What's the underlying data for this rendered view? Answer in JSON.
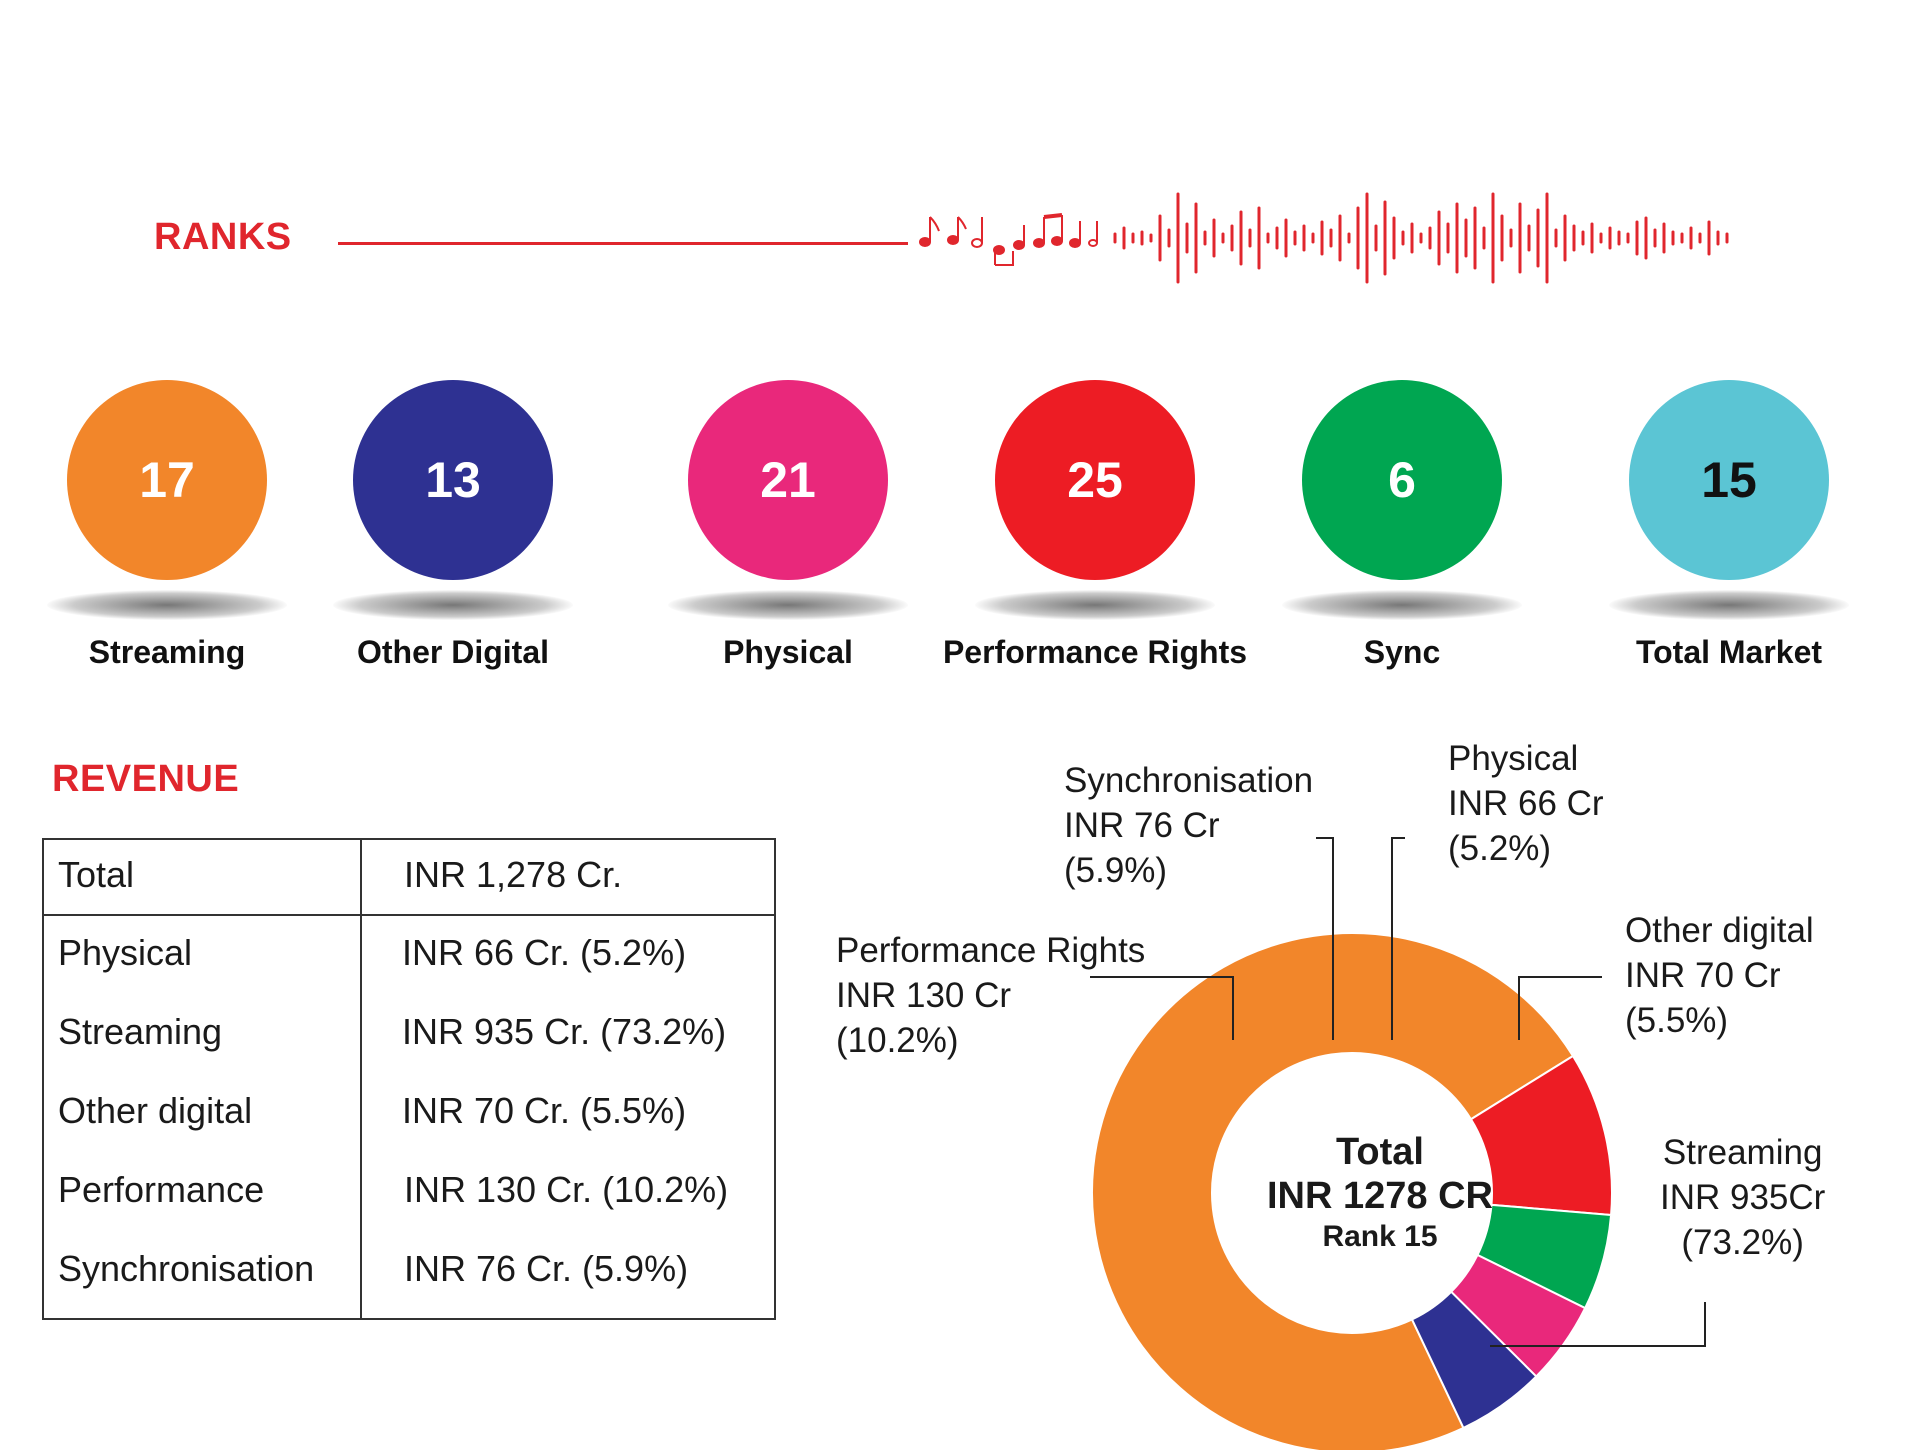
{
  "ranks": {
    "title": "RANKS",
    "items": [
      {
        "value": "17",
        "label": "Streaming",
        "color": "#f2862a",
        "text_color": "#ffffff"
      },
      {
        "value": "13",
        "label": "Other Digital",
        "color": "#2e3192",
        "text_color": "#ffffff"
      },
      {
        "value": "21",
        "label": "Physical",
        "color": "#e9287b",
        "text_color": "#ffffff"
      },
      {
        "value": "25",
        "label": "Performance Rights",
        "color": "#ed1c24",
        "text_color": "#ffffff"
      },
      {
        "value": "6",
        "label": "Sync",
        "color": "#00a651",
        "text_color": "#ffffff"
      },
      {
        "value": "15",
        "label": "Total Market",
        "color": "#5bc5d4",
        "text_color": "#111111"
      }
    ]
  },
  "revenue": {
    "title": "REVENUE",
    "header": {
      "label": "Total",
      "value": "INR 1,278 Cr."
    },
    "rows": [
      {
        "label": "Physical",
        "value": "INR 66 Cr. (5.2%)"
      },
      {
        "label": "Streaming",
        "value": "INR 935 Cr. (73.2%)"
      },
      {
        "label": "Other digital",
        "value": "INR 70 Cr. (5.5%)"
      },
      {
        "label": "Performance",
        "value": "INR 130 Cr. (10.2%)"
      },
      {
        "label": "Synchronisation",
        "value": "INR 76 Cr. (5.9%)"
      }
    ]
  },
  "chart_data": {
    "type": "pie",
    "center": {
      "title": "Total",
      "value": "INR 1278 CR",
      "rank": "Rank 15"
    },
    "slices": [
      {
        "name": "Streaming",
        "value": 935,
        "percent": 73.2,
        "color": "#f2862a",
        "label": [
          "Streaming",
          "INR 935Cr",
          "(73.2%)"
        ]
      },
      {
        "name": "Performance Rights",
        "value": 130,
        "percent": 10.2,
        "color": "#ed1c24",
        "label": [
          "Performance Rights",
          "INR 130 Cr",
          "(10.2%)"
        ]
      },
      {
        "name": "Synchronisation",
        "value": 76,
        "percent": 5.9,
        "color": "#00a651",
        "label": [
          "Synchronisation",
          "INR 76 Cr",
          "(5.9%)"
        ]
      },
      {
        "name": "Physical",
        "value": 66,
        "percent": 5.2,
        "color": "#e9287b",
        "label": [
          "Physical",
          "INR 66 Cr",
          "(5.2%)"
        ]
      },
      {
        "name": "Other digital",
        "value": 70,
        "percent": 5.5,
        "color": "#2e3192",
        "label": [
          "Other digital",
          "INR 70 Cr",
          "(5.5%)"
        ]
      }
    ]
  }
}
